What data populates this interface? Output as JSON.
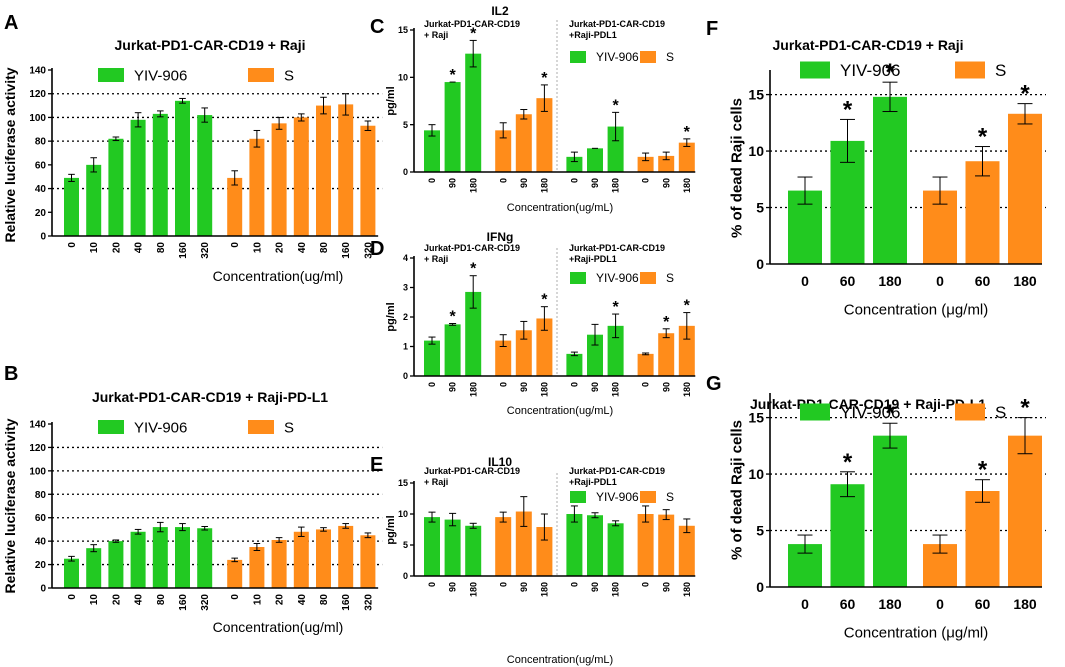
{
  "colors": {
    "green": "#22c922",
    "orange": "#ff8c1a",
    "axis": "#000000",
    "grid": "#000000"
  },
  "chart_data": [
    {
      "id": "A",
      "panel_label": "A",
      "type": "bar",
      "title": "Jurkat-PD1-CAR-CD19 + Raji",
      "xlabel": "Concentration(ug/ml)",
      "ylabel": "Relative luciferase activity",
      "ylim": [
        0,
        140
      ],
      "yticks": [
        0,
        20,
        40,
        60,
        80,
        100,
        120,
        140
      ],
      "gridlines": [
        40,
        80,
        100,
        120
      ],
      "legend_position": "top",
      "groups": [
        {
          "name": "YIV-906",
          "color": "green",
          "categories": [
            "0",
            "10",
            "20",
            "40",
            "80",
            "160",
            "320"
          ],
          "values": [
            49,
            60,
            82,
            98,
            103,
            114,
            102
          ],
          "errors": [
            3,
            6,
            1.5,
            6,
            2.5,
            2,
            6
          ],
          "star": [
            false,
            false,
            false,
            false,
            false,
            false,
            false
          ]
        },
        {
          "name": "S",
          "color": "orange",
          "categories": [
            "0",
            "10",
            "20",
            "40",
            "80",
            "160",
            "320"
          ],
          "values": [
            49,
            82,
            95,
            100,
            110,
            111,
            93
          ],
          "errors": [
            6,
            7,
            5,
            3,
            7,
            9,
            4
          ],
          "star": [
            false,
            false,
            false,
            false,
            false,
            false,
            false
          ]
        }
      ]
    },
    {
      "id": "B",
      "panel_label": "B",
      "type": "bar",
      "title": "Jurkat-PD1-CAR-CD19 + Raji-PD-L1",
      "xlabel": "Concentration(ug/ml)",
      "ylabel": "Relative luciferase activity",
      "ylim": [
        0,
        140
      ],
      "yticks": [
        0,
        20,
        40,
        60,
        80,
        100,
        120,
        140
      ],
      "gridlines": [
        20,
        40,
        60,
        80,
        100,
        120
      ],
      "legend_position": "top",
      "groups": [
        {
          "name": "YIV-906",
          "color": "green",
          "categories": [
            "0",
            "10",
            "20",
            "40",
            "80",
            "160",
            "320"
          ],
          "values": [
            25,
            34,
            40,
            48,
            52,
            52,
            51
          ],
          "errors": [
            2,
            3,
            1,
            2,
            4,
            3,
            1.5
          ],
          "star": [
            false,
            false,
            false,
            false,
            false,
            false,
            false
          ]
        },
        {
          "name": "S",
          "color": "orange",
          "categories": [
            "0",
            "10",
            "20",
            "40",
            "80",
            "160",
            "320"
          ],
          "values": [
            24,
            35,
            41,
            48,
            50,
            53,
            45
          ],
          "errors": [
            1.5,
            3,
            2,
            4,
            1.5,
            2,
            2
          ],
          "star": [
            false,
            false,
            false,
            false,
            false,
            false,
            false
          ]
        }
      ]
    },
    {
      "id": "C",
      "panel_label": "C",
      "type": "bar",
      "title": "IL2",
      "xlabel": "Concentration(ug/mL)",
      "ylabel": "pg/ml",
      "ylim": [
        0,
        15
      ],
      "yticks": [
        0,
        5,
        10,
        15
      ],
      "gridlines": [],
      "sub_titles": [
        "Jurkat-PD1-CAR-CD19\n+ Raji",
        "Jurkat-PD1-CAR-CD19\n+Raji-PDL1"
      ],
      "legend_position": "top-right",
      "groups": [
        {
          "name": "YIV-906",
          "color": "green",
          "categories": [
            "0",
            "90",
            "180"
          ],
          "values": [
            4.4,
            9.5,
            12.5
          ],
          "errors": [
            0.6,
            0,
            1.4
          ],
          "star": [
            false,
            true,
            true
          ]
        },
        {
          "name": "S",
          "color": "orange",
          "categories": [
            "0",
            "90",
            "180"
          ],
          "values": [
            4.4,
            6.1,
            7.8
          ],
          "errors": [
            0.8,
            0.5,
            1.4
          ],
          "star": [
            false,
            false,
            true
          ]
        },
        {
          "name": "YIV-906",
          "color": "green",
          "categories": [
            "0",
            "90",
            "180"
          ],
          "values": [
            1.6,
            2.5,
            4.8
          ],
          "errors": [
            0.5,
            0,
            1.5
          ],
          "star": [
            false,
            false,
            true
          ]
        },
        {
          "name": "S",
          "color": "orange",
          "categories": [
            "0",
            "90",
            "180"
          ],
          "values": [
            1.6,
            1.7,
            3.1
          ],
          "errors": [
            0.4,
            0.4,
            0.4
          ],
          "star": [
            false,
            false,
            true
          ]
        }
      ]
    },
    {
      "id": "D",
      "panel_label": "D",
      "type": "bar",
      "title": "IFNg",
      "xlabel": "Concentration(ug/mL)",
      "ylabel": "pg/ml",
      "ylim": [
        0,
        4
      ],
      "yticks": [
        0,
        1,
        2,
        3,
        4
      ],
      "gridlines": [],
      "sub_titles": [
        "Jurkat-PD1-CAR-CD19\n+ Raji",
        "Jurkat-PD1-CAR-CD19\n+Raji-PDL1"
      ],
      "legend_position": "top-right",
      "groups": [
        {
          "name": "YIV-906",
          "color": "green",
          "categories": [
            "0",
            "90",
            "180"
          ],
          "values": [
            1.2,
            1.75,
            2.85
          ],
          "errors": [
            0.12,
            0.03,
            0.55
          ],
          "star": [
            false,
            true,
            true
          ]
        },
        {
          "name": "S",
          "color": "orange",
          "categories": [
            "0",
            "90",
            "180"
          ],
          "values": [
            1.2,
            1.55,
            1.95
          ],
          "errors": [
            0.2,
            0.3,
            0.4
          ],
          "star": [
            false,
            false,
            true
          ]
        },
        {
          "name": "YIV-906",
          "color": "green",
          "categories": [
            "0",
            "90",
            "180"
          ],
          "values": [
            0.75,
            1.4,
            1.7
          ],
          "errors": [
            0.06,
            0.35,
            0.4
          ],
          "star": [
            false,
            false,
            true
          ]
        },
        {
          "name": "S",
          "color": "orange",
          "categories": [
            "0",
            "90",
            "180"
          ],
          "values": [
            0.75,
            1.45,
            1.7
          ],
          "errors": [
            0.03,
            0.15,
            0.45
          ],
          "star": [
            false,
            true,
            true
          ]
        }
      ]
    },
    {
      "id": "E",
      "panel_label": "E",
      "type": "bar",
      "title": "IL10",
      "xlabel": "Concentration(ug/mL)",
      "ylabel": "pg/ml",
      "ylim": [
        0,
        15
      ],
      "yticks": [
        0,
        5,
        10,
        15
      ],
      "gridlines": [],
      "sub_titles": [
        "Jurkat-PD1-CAR-CD19\n+ Raji",
        "Jurkat-PD1-CAR-CD19\n+Raji-PDL1"
      ],
      "legend_position": "top-right",
      "groups": [
        {
          "name": "YIV-906",
          "color": "green",
          "categories": [
            "0",
            "90",
            "180"
          ],
          "values": [
            9.5,
            9.1,
            8.1
          ],
          "errors": [
            0.8,
            1,
            0.4
          ],
          "star": [
            false,
            false,
            false
          ]
        },
        {
          "name": "S",
          "color": "orange",
          "categories": [
            "0",
            "90",
            "180"
          ],
          "values": [
            9.5,
            10.4,
            7.9
          ],
          "errors": [
            0.8,
            2.4,
            2.1
          ],
          "star": [
            false,
            false,
            false
          ]
        },
        {
          "name": "YIV-906",
          "color": "green",
          "categories": [
            "0",
            "90",
            "180"
          ],
          "values": [
            10,
            9.8,
            8.5
          ],
          "errors": [
            1.3,
            0.4,
            0.4
          ],
          "star": [
            false,
            false,
            false
          ]
        },
        {
          "name": "S",
          "color": "orange",
          "categories": [
            "0",
            "90",
            "180"
          ],
          "values": [
            10,
            9.9,
            8.1
          ],
          "errors": [
            1.3,
            0.8,
            1.1
          ],
          "star": [
            false,
            false,
            false
          ]
        }
      ]
    },
    {
      "id": "F",
      "panel_label": "F",
      "type": "bar",
      "title": "Jurkat-PD1-CAR-CD19 + Raji",
      "xlabel": "Concentration (μg/ml)",
      "ylabel": "% of dead Raji cells",
      "ylim": [
        0,
        17
      ],
      "yticks": [
        0,
        5,
        10,
        15
      ],
      "gridlines": [
        5,
        10,
        15
      ],
      "legend_position": "top",
      "groups": [
        {
          "name": "YIV-906",
          "color": "green",
          "categories": [
            "0",
            "60",
            "180"
          ],
          "values": [
            6.5,
            10.9,
            14.8
          ],
          "errors": [
            1.2,
            1.9,
            1.3
          ],
          "star": [
            false,
            true,
            true
          ]
        },
        {
          "name": "S",
          "color": "orange",
          "categories": [
            "0",
            "60",
            "180"
          ],
          "values": [
            6.5,
            9.1,
            13.3
          ],
          "errors": [
            1.2,
            1.3,
            0.9
          ],
          "star": [
            false,
            true,
            true
          ]
        }
      ]
    },
    {
      "id": "G",
      "panel_label": "G",
      "type": "bar",
      "title": "Jurkat-PD1-CAR-CD19 + Raji-PD-L1",
      "xlabel": "Concentration (μg/ml)",
      "ylabel": "% of dead Raji cells",
      "ylim": [
        0,
        17
      ],
      "yticks": [
        0,
        5,
        10,
        15
      ],
      "gridlines": [
        5,
        10,
        15
      ],
      "legend_position": "top",
      "groups": [
        {
          "name": "YIV-906",
          "color": "green",
          "categories": [
            "0",
            "60",
            "180"
          ],
          "values": [
            3.8,
            9.1,
            13.4
          ],
          "errors": [
            0.8,
            1.1,
            1.1
          ],
          "star": [
            false,
            true,
            true
          ]
        },
        {
          "name": "S",
          "color": "orange",
          "categories": [
            "0",
            "60",
            "180"
          ],
          "values": [
            3.8,
            8.5,
            13.4
          ],
          "errors": [
            0.8,
            1,
            1.6
          ],
          "star": [
            false,
            true,
            true
          ]
        }
      ]
    }
  ]
}
